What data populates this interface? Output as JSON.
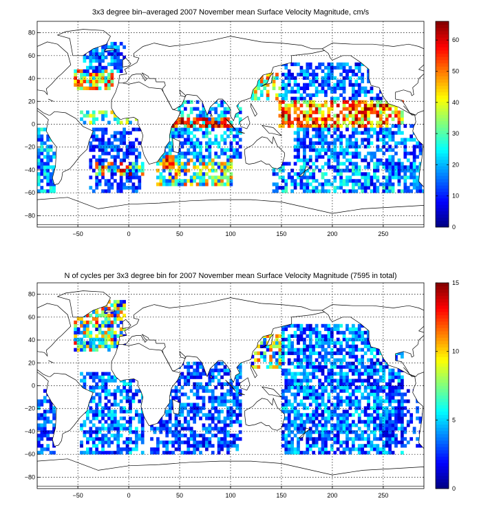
{
  "chart_data": [
    {
      "type": "heatmap",
      "title": "3x3 degree bin–averaged 2007 November mean Surface Velocity Magnitude, cm/s",
      "xlim": [
        -90,
        290
      ],
      "ylim": [
        -90,
        90
      ],
      "x_ticks": [
        -50,
        0,
        50,
        100,
        150,
        200,
        250
      ],
      "y_ticks": [
        -80,
        -60,
        -40,
        -20,
        0,
        20,
        40,
        60,
        80
      ],
      "bin_size_deg": 3,
      "grid": true,
      "colormap": "jet",
      "colorbar": {
        "min": 0,
        "max": 66,
        "ticks": [
          0,
          10,
          20,
          30,
          40,
          50,
          60
        ],
        "placement": "right"
      },
      "x_tick_labels": [
        "−50",
        "0",
        "50",
        "100",
        "150",
        "200",
        "250"
      ],
      "y_tick_labels": [
        "−80",
        "−60",
        "−40",
        "−20",
        "0",
        "20",
        "40",
        "60",
        "80"
      ],
      "colorbar_tick_labels": [
        "0",
        "10",
        "20",
        "30",
        "40",
        "50",
        "60"
      ],
      "regions": [
        {
          "lon": [
            -90,
            -72
          ],
          "lat": [
            -60,
            -5
          ],
          "values": [
            8,
            30
          ],
          "density": 0.7
        },
        {
          "lon": [
            -50,
            10
          ],
          "lat": [
            0,
            10
          ],
          "values": [
            15,
            45
          ],
          "density": 0.5
        },
        {
          "lon": [
            -55,
            -15
          ],
          "lat": [
            30,
            48
          ],
          "values": [
            20,
            60
          ],
          "density": 0.75
        },
        {
          "lon": [
            -45,
            -5
          ],
          "lat": [
            45,
            72
          ],
          "values": [
            5,
            25
          ],
          "density": 0.7
        },
        {
          "lon": [
            -40,
            10
          ],
          "lat": [
            -60,
            -5
          ],
          "values": [
            5,
            20
          ],
          "density": 0.6
        },
        {
          "lon": [
            -35,
            15
          ],
          "lat": [
            -45,
            -35
          ],
          "values": [
            20,
            65
          ],
          "density": 0.55
        },
        {
          "lon": [
            20,
            110
          ],
          "lat": [
            -30,
            20
          ],
          "values": [
            8,
            30
          ],
          "density": 0.55
        },
        {
          "lon": [
            25,
            100
          ],
          "lat": [
            -55,
            -32
          ],
          "values": [
            10,
            55
          ],
          "density": 0.7
        },
        {
          "lon": [
            30,
            45
          ],
          "lat": [
            -40,
            -28
          ],
          "values": [
            45,
            66
          ],
          "density": 0.8
        },
        {
          "lon": [
            40,
            100
          ],
          "lat": [
            -5,
            6
          ],
          "values": [
            45,
            66
          ],
          "density": 0.75
        },
        {
          "lon": [
            120,
            150
          ],
          "lat": [
            20,
            45
          ],
          "values": [
            20,
            55
          ],
          "density": 0.6
        },
        {
          "lon": [
            150,
            250
          ],
          "lat": [
            20,
            52
          ],
          "values": [
            5,
            25
          ],
          "density": 0.6
        },
        {
          "lon": [
            145,
            270
          ],
          "lat": [
            -4,
            20
          ],
          "values": [
            30,
            66
          ],
          "density": 0.7
        },
        {
          "lon": [
            160,
            260
          ],
          "lat": [
            -35,
            -5
          ],
          "values": [
            5,
            25
          ],
          "density": 0.6
        },
        {
          "lon": [
            140,
            290
          ],
          "lat": [
            -62,
            -35
          ],
          "values": [
            5,
            30
          ],
          "density": 0.6
        },
        {
          "lon": [
            250,
            290
          ],
          "lat": [
            -55,
            0
          ],
          "values": [
            5,
            25
          ],
          "density": 0.45
        }
      ]
    },
    {
      "type": "heatmap",
      "title": "N of cycles per 3x3 degree bin for 2007 November mean Surface Velocity Magnitude (7595 in total)",
      "xlim": [
        -90,
        290
      ],
      "ylim": [
        -90,
        90
      ],
      "x_ticks": [
        -50,
        0,
        50,
        100,
        150,
        200,
        250
      ],
      "y_ticks": [
        -80,
        -60,
        -40,
        -20,
        0,
        20,
        40,
        60,
        80
      ],
      "bin_size_deg": 3,
      "grid": true,
      "colormap": "jet",
      "total_cycles": 7595,
      "colorbar": {
        "min": 0,
        "max": 15,
        "ticks": [
          0,
          5,
          10,
          15
        ],
        "placement": "right"
      },
      "x_tick_labels": [
        "−50",
        "0",
        "50",
        "100",
        "150",
        "200",
        "250"
      ],
      "y_tick_labels": [
        "−80",
        "−60",
        "−40",
        "−20",
        "0",
        "20",
        "40",
        "60",
        "80"
      ],
      "colorbar_tick_labels": [
        "0",
        "5",
        "10",
        "15"
      ],
      "regions": [
        {
          "lon": [
            -90,
            -72
          ],
          "lat": [
            -60,
            -5
          ],
          "values": [
            1,
            5
          ],
          "density": 0.7
        },
        {
          "lon": [
            -55,
            -5
          ],
          "lat": [
            30,
            75
          ],
          "values": [
            1,
            13
          ],
          "density": 0.75
        },
        {
          "lon": [
            -50,
            15
          ],
          "lat": [
            -60,
            10
          ],
          "values": [
            1,
            6
          ],
          "density": 0.6
        },
        {
          "lon": [
            20,
            110
          ],
          "lat": [
            -60,
            20
          ],
          "values": [
            1,
            5
          ],
          "density": 0.65
        },
        {
          "lon": [
            120,
            150
          ],
          "lat": [
            15,
            45
          ],
          "values": [
            1,
            12
          ],
          "density": 0.6
        },
        {
          "lon": [
            150,
            270
          ],
          "lat": [
            -60,
            52
          ],
          "values": [
            1,
            6
          ],
          "density": 0.7
        },
        {
          "lon": [
            250,
            290
          ],
          "lat": [
            -55,
            0
          ],
          "values": [
            1,
            4
          ],
          "density": 0.45
        }
      ]
    }
  ]
}
